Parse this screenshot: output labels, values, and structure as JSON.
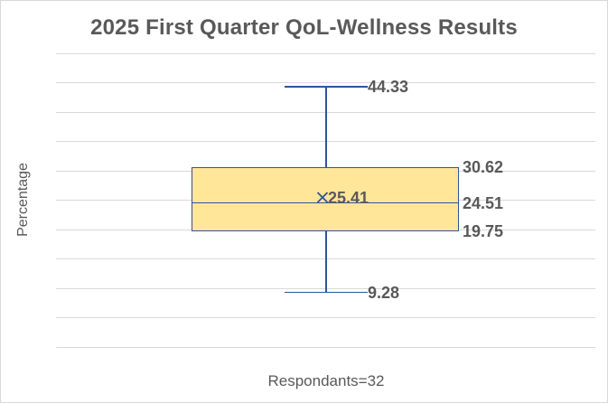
{
  "chart_data": {
    "type": "boxplot",
    "title": "2025 First Quarter QoL-Wellness Results",
    "ylabel": "Percentage",
    "xlabel": "",
    "categories": [
      "Respondants=32"
    ],
    "series": [
      {
        "name": "QoL-Wellness",
        "min": 9.28,
        "q1": 19.75,
        "median": 24.51,
        "q3": 30.62,
        "max": 44.33,
        "mean": 25.41
      }
    ],
    "data_labels": {
      "max": "44.33",
      "q3": "30.62",
      "median": "24.51",
      "q1": "19.75",
      "min": "9.28",
      "mean": "25.41"
    },
    "ylim": [
      0,
      50
    ],
    "gridline_step": 5,
    "grid": true,
    "legend": "none",
    "y_tick_labels_visible": false,
    "colors": {
      "box_fill": "#FFE699",
      "box_border": "#2E5597",
      "whisker": "#2E5597",
      "mean_marker": "#2E5597",
      "gridline": "#D9D9D9",
      "text": "#595959",
      "background": "#FFFFFF",
      "chart_border": "#D9D9D9"
    }
  }
}
